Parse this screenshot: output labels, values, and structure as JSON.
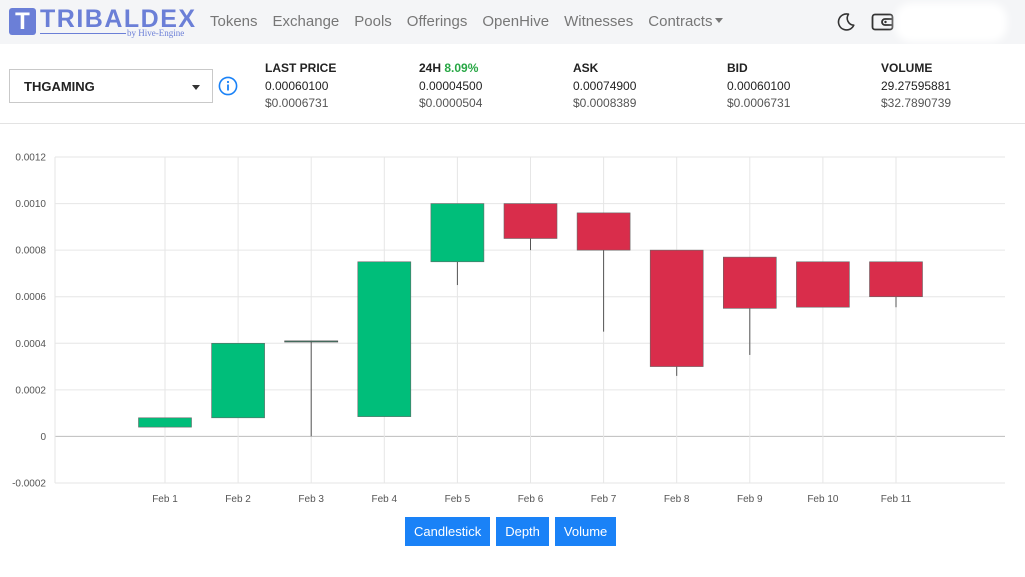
{
  "brand": {
    "logo_letter": "T",
    "name": "TRIBALDEX",
    "sub": "by Hive-Engine",
    "color": "#6b7fd7"
  },
  "nav": {
    "items": [
      "Tokens",
      "Exchange",
      "Pools",
      "Offerings",
      "OpenHive",
      "Witnesses",
      "Contracts"
    ]
  },
  "header_icons": [
    "moon-icon",
    "wallet-icon"
  ],
  "token_select": {
    "value": "THGAMING"
  },
  "stats": {
    "last_price": {
      "label": "LAST PRICE",
      "value": "0.00060100",
      "usd": "$0.0006731"
    },
    "change_24h": {
      "label": "24H",
      "percent": "8.09%",
      "value": "0.00004500",
      "usd": "$0.0000504"
    },
    "ask": {
      "label": "ASK",
      "value": "0.00074900",
      "usd": "$0.0008389"
    },
    "bid": {
      "label": "BID",
      "value": "0.00060100",
      "usd": "$0.0006731"
    },
    "volume": {
      "label": "VOLUME",
      "value": "29.27595881",
      "usd": "$32.7890739"
    }
  },
  "chart_data": {
    "type": "candlestick",
    "categories": [
      "Feb 1",
      "Feb 2",
      "Feb 3",
      "Feb 4",
      "Feb 5",
      "Feb 6",
      "Feb 7",
      "Feb 8",
      "Feb 9",
      "Feb 10",
      "Feb 11"
    ],
    "ohlc": [
      {
        "open": 4e-05,
        "high": 8e-05,
        "low": 4e-05,
        "close": 8e-05
      },
      {
        "open": 8e-05,
        "high": 0.0004,
        "low": 8e-05,
        "close": 0.0004
      },
      {
        "open": 0.00041,
        "high": 0.00041,
        "low": 0.0,
        "close": 0.00041
      },
      {
        "open": 8.5e-05,
        "high": 0.00075,
        "low": 8.5e-05,
        "close": 0.00075
      },
      {
        "open": 0.00075,
        "high": 0.001,
        "low": 0.00065,
        "close": 0.001
      },
      {
        "open": 0.001,
        "high": 0.001,
        "low": 0.0008,
        "close": 0.00085
      },
      {
        "open": 0.00096,
        "high": 0.00096,
        "low": 0.00045,
        "close": 0.0008
      },
      {
        "open": 0.0008,
        "high": 0.0008,
        "low": 0.00026,
        "close": 0.0003
      },
      {
        "open": 0.00077,
        "high": 0.00077,
        "low": 0.00035,
        "close": 0.00055
      },
      {
        "open": 0.00075,
        "high": 0.00075,
        "low": 0.000555,
        "close": 0.000555
      },
      {
        "open": 0.00075,
        "high": 0.00075,
        "low": 0.000555,
        "close": 0.0006
      }
    ],
    "y_ticks": [
      "0.0012",
      "0.0010",
      "0.0008",
      "0.0006",
      "0.0004",
      "0.0002",
      "0",
      "-0.0002"
    ],
    "ylim": [
      -0.0002,
      0.0012
    ],
    "up_color": "#00be7a",
    "down_color": "#d92d4b",
    "grid": true
  },
  "chart_tabs": [
    "Candlestick",
    "Depth",
    "Volume"
  ],
  "colors": {
    "accent": "#1a82f7",
    "positive": "#28a745"
  }
}
